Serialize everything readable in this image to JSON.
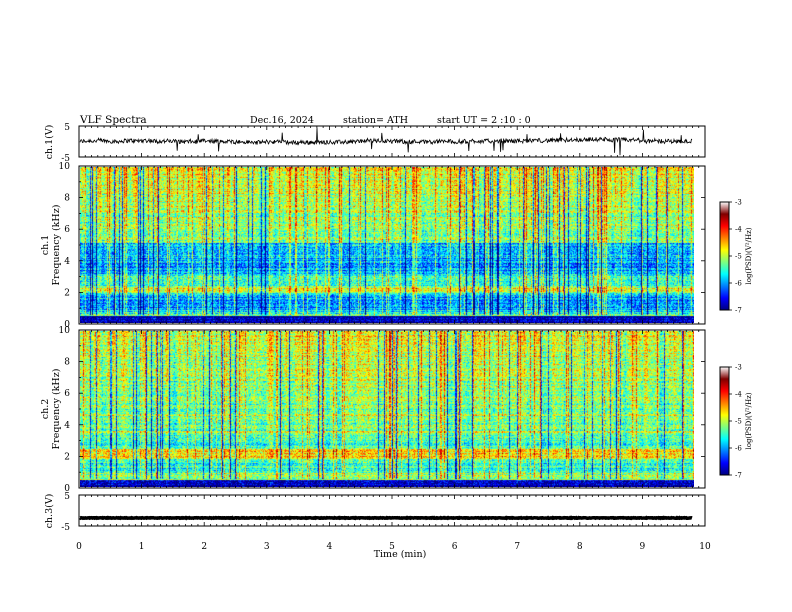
{
  "header": {
    "title": "VLF  Spectra",
    "date": "Dec.16, 2024",
    "station": "station= ATH",
    "start": "start  UT  =   2  :10 : 0"
  },
  "colors": {
    "jet": [
      "#00007f",
      "#0000ff",
      "#007fff",
      "#00ffff",
      "#7fff7f",
      "#ffff00",
      "#ff7f00",
      "#ff0000",
      "#7f0000",
      "#ffffff"
    ]
  },
  "chart_data": [
    {
      "id": "ch1-waveform",
      "type": "line",
      "ylabel": "ch.1(V)",
      "xlim": [
        0,
        10
      ],
      "ylim": [
        -5,
        5
      ],
      "yticks": [
        "5",
        "-5"
      ],
      "baseline": 0,
      "data_end_min": 9.8
    },
    {
      "id": "ch1-spectrogram",
      "type": "heatmap",
      "ylabel": "ch.1\nFrequency (kHz)",
      "ylabel_lines": [
        "ch.1",
        "Frequency (kHz)"
      ],
      "xlim": [
        0,
        10
      ],
      "ylim": [
        0,
        10
      ],
      "yticks": [
        "0",
        "2",
        "4",
        "6",
        "8",
        "10"
      ],
      "colorbar": {
        "label": "log(PSD)(V²/Hz)",
        "range": [
          -7,
          -3
        ],
        "ticks": [
          "-3",
          "-4",
          "-5",
          "-6",
          "-7"
        ]
      },
      "features": {
        "bright_band_khz": [
          1.9,
          2.3
        ],
        "quiet_band_khz": [
          3.2,
          5.0
        ],
        "low_band_khz": [
          0.8,
          1.8
        ]
      }
    },
    {
      "id": "ch2-spectrogram",
      "type": "heatmap",
      "ylabel": "ch.2\nFrequency (kHz)",
      "ylabel_lines": [
        "ch.2",
        "Frequency (kHz)"
      ],
      "xlim": [
        0,
        10
      ],
      "ylim": [
        0,
        10
      ],
      "yticks": [
        "0",
        "2",
        "4",
        "6",
        "8",
        "10"
      ],
      "colorbar": {
        "label": "log(PSD)(V²/Hz)",
        "range": [
          -7,
          -3
        ],
        "ticks": [
          "-3",
          "-4",
          "-5",
          "-6",
          "-7"
        ]
      },
      "features": {
        "bright_band_khz": [
          1.8,
          2.4
        ],
        "line_khz": [
          3.5,
          4.6
        ]
      }
    },
    {
      "id": "ch3-waveform",
      "type": "line",
      "ylabel": "ch.3(V)",
      "xlim": [
        0,
        10
      ],
      "ylim": [
        -5,
        5
      ],
      "yticks": [
        "5",
        "-5"
      ],
      "baseline": -2.4,
      "data_end_min": 9.8
    }
  ],
  "xaxis": {
    "label": "Time  (min)",
    "ticks": [
      "0",
      "1",
      "2",
      "3",
      "4",
      "5",
      "6",
      "7",
      "8",
      "9",
      "10"
    ]
  }
}
